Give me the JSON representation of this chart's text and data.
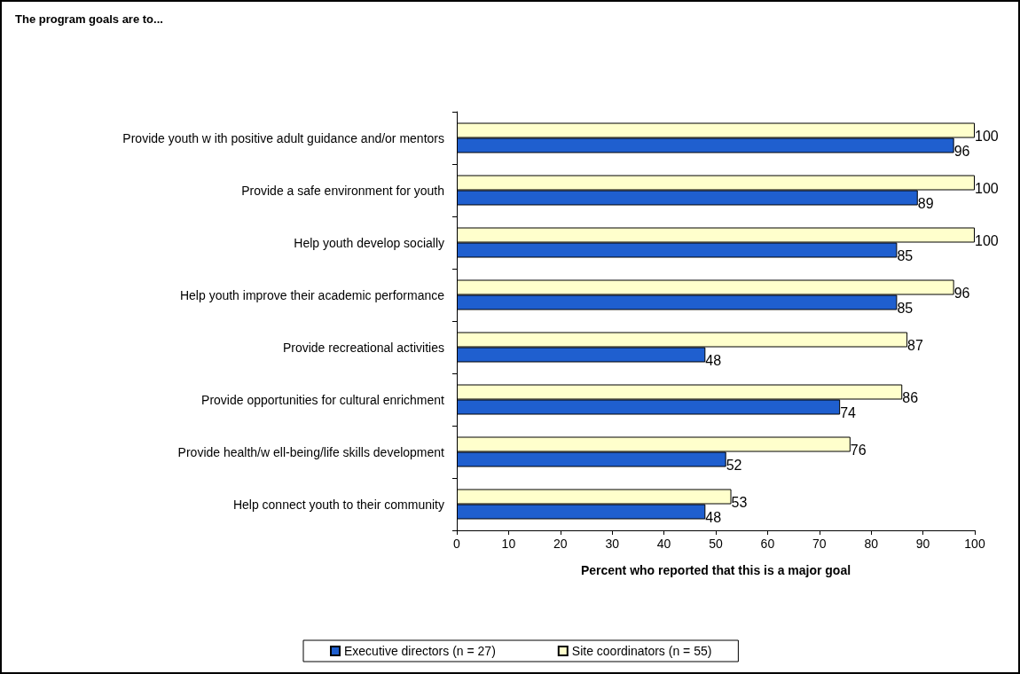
{
  "chart_data": {
    "type": "bar",
    "orientation": "horizontal",
    "title": "The program goals are to...",
    "xlabel": "Percent who reported that this is a major goal",
    "categories": [
      "Provide youth w ith positive adult guidance and/or mentors",
      "Provide a safe environment for youth",
      "Help youth develop socially",
      "Help youth improve their academic performance",
      "Provide recreational activities",
      "Provide opportunities for cultural enrichment",
      "Provide health/w ell-being/life skills development",
      "Help connect youth to their community"
    ],
    "series": [
      {
        "name": "Executive directors (n = 27)",
        "color": "#1f5fcf",
        "values": [
          96,
          89,
          85,
          85,
          48,
          74,
          52,
          48
        ]
      },
      {
        "name": "Site coordinators (n = 55)",
        "color": "#ffffcc",
        "values": [
          100,
          100,
          100,
          96,
          87,
          86,
          76,
          53
        ]
      }
    ],
    "xlim": [
      0,
      100
    ],
    "xticks": [
      0,
      10,
      20,
      30,
      40,
      50,
      60,
      70,
      80,
      90,
      100
    ],
    "grid": false,
    "legend": "bottom",
    "data_labels": true
  }
}
